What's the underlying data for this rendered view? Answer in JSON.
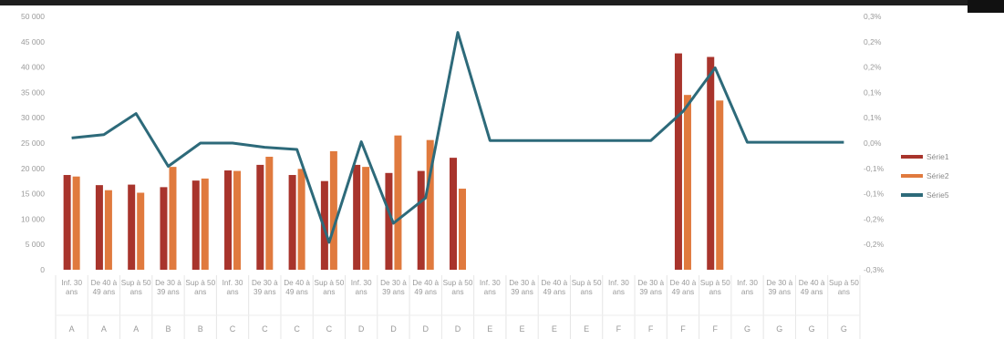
{
  "chart_data": {
    "type": "bar",
    "title": "",
    "xlabel": "",
    "ylabel": "",
    "ylim": [
      0,
      50000
    ],
    "y2lim": [
      -0.3,
      0.3
    ],
    "y_ticks": [
      "0",
      "5 000",
      "10 000",
      "15 000",
      "20 000",
      "25 000",
      "30 000",
      "35 000",
      "40 000",
      "45 000",
      "50 000"
    ],
    "y2_ticks": [
      "-0,3%",
      "-0,2%",
      "-0,2%",
      "-0,1%",
      "-0,1%",
      "0,0%",
      "0,1%",
      "0,1%",
      "0,2%",
      "0,2%",
      "0,3%"
    ],
    "categories": [
      "Inf. 30 ans",
      "De 40 à 49 ans",
      "Sup à 50 ans",
      "De 30 à 39 ans",
      "Sup à 50 ans",
      "Inf. 30 ans",
      "De 30 à 39 ans",
      "De 40 à 49 ans",
      "Sup à 50 ans",
      "Inf. 30 ans",
      "De 30 à 39 ans",
      "De 40 à 49 ans",
      "Sup à 50 ans",
      "Inf. 30 ans",
      "De 30 à 39 ans",
      "De 40 à 49 ans",
      "Sup à 50 ans",
      "Inf. 30 ans",
      "De 30 à 39 ans",
      "De 40 à 49 ans",
      "Sup à 50 ans",
      "Inf. 30 ans",
      "De 30 à 39 ans",
      "De 40 à 49 ans",
      "Sup à 50 ans"
    ],
    "groups": [
      "A",
      "A",
      "A",
      "B",
      "B",
      "C",
      "C",
      "C",
      "C",
      "D",
      "D",
      "D",
      "D",
      "E",
      "E",
      "E",
      "E",
      "F",
      "F",
      "F",
      "F",
      "G",
      "G",
      "G",
      "G"
    ],
    "series": [
      {
        "name": "Série1",
        "axis": "left",
        "kind": "bar",
        "color": "#a8342c",
        "values": [
          18700,
          16700,
          16800,
          16300,
          17600,
          19600,
          20700,
          18700,
          17500,
          20700,
          19100,
          19500,
          22100,
          null,
          null,
          null,
          null,
          null,
          null,
          42700,
          42000,
          null,
          null,
          null,
          null
        ]
      },
      {
        "name": "Série2",
        "axis": "left",
        "kind": "bar",
        "color": "#e07a3e",
        "values": [
          18400,
          15700,
          15200,
          20300,
          18000,
          19500,
          22300,
          19900,
          23400,
          20300,
          26500,
          25600,
          16000,
          null,
          null,
          null,
          null,
          null,
          null,
          34500,
          33400,
          null,
          null,
          null,
          null
        ]
      },
      {
        "name": "Série5",
        "axis": "right",
        "kind": "line",
        "color": "#2d6a7a",
        "values": [
          0.012,
          0.02,
          0.07,
          -0.055,
          0.0,
          0.0,
          -0.01,
          -0.015,
          -0.235,
          0.003,
          -0.19,
          -0.13,
          0.262,
          0.006,
          0.006,
          0.006,
          0.006,
          0.006,
          0.006,
          0.075,
          0.178,
          0.002,
          0.002,
          0.002,
          0.002
        ]
      }
    ],
    "legend": {
      "position": "right",
      "items": [
        "Série1",
        "Série2",
        "Série5"
      ]
    },
    "grid": false
  }
}
